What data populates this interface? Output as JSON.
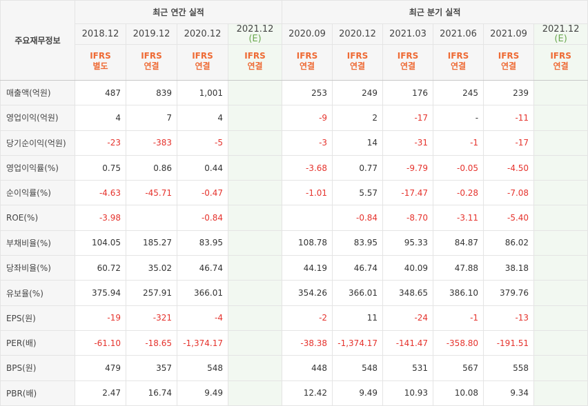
{
  "header": {
    "row_label": "주요재무정보",
    "annual_group": "최근 연간 실적",
    "quarterly_group": "최근 분기 실적",
    "annual_periods": [
      "2018.12",
      "2019.12",
      "2020.12"
    ],
    "annual_estimate": {
      "period": "2021.12",
      "mark": "(E)"
    },
    "quarterly_periods": [
      "2020.09",
      "2020.12",
      "2021.03",
      "2021.06",
      "2021.09"
    ],
    "quarterly_estimate": {
      "period": "2021.12",
      "mark": "(E)"
    },
    "annual_ifrs": [
      {
        "line1": "IFRS",
        "line2": "별도"
      },
      {
        "line1": "IFRS",
        "line2": "연결"
      },
      {
        "line1": "IFRS",
        "line2": "연결"
      },
      {
        "line1": "IFRS",
        "line2": "연결"
      }
    ],
    "quarterly_ifrs": [
      {
        "line1": "IFRS",
        "line2": "연결"
      },
      {
        "line1": "IFRS",
        "line2": "연결"
      },
      {
        "line1": "IFRS",
        "line2": "연결"
      },
      {
        "line1": "IFRS",
        "line2": "연결"
      },
      {
        "line1": "IFRS",
        "line2": "연결"
      },
      {
        "line1": "IFRS",
        "line2": "연결"
      }
    ]
  },
  "rows": [
    {
      "label": "매출액(억원)",
      "annual": [
        "487",
        "839",
        "1,001",
        ""
      ],
      "quarterly": [
        "253",
        "249",
        "176",
        "245",
        "239",
        ""
      ]
    },
    {
      "label": "영업이익(억원)",
      "annual": [
        "4",
        "7",
        "4",
        ""
      ],
      "quarterly": [
        "-9",
        "2",
        "-17",
        "-",
        "-11",
        ""
      ]
    },
    {
      "label": "당기순이익(억원)",
      "annual": [
        "-23",
        "-383",
        "-5",
        ""
      ],
      "quarterly": [
        "-3",
        "14",
        "-31",
        "-1",
        "-17",
        ""
      ]
    },
    {
      "label": "영업이익률(%)",
      "annual": [
        "0.75",
        "0.86",
        "0.44",
        ""
      ],
      "quarterly": [
        "-3.68",
        "0.77",
        "-9.79",
        "-0.05",
        "-4.50",
        ""
      ]
    },
    {
      "label": "순이익률(%)",
      "annual": [
        "-4.63",
        "-45.71",
        "-0.47",
        ""
      ],
      "quarterly": [
        "-1.01",
        "5.57",
        "-17.47",
        "-0.28",
        "-7.08",
        ""
      ]
    },
    {
      "label": "ROE(%)",
      "annual": [
        "-3.98",
        "",
        "-0.84",
        ""
      ],
      "quarterly": [
        "",
        "-0.84",
        "-8.70",
        "-3.11",
        "-5.40",
        ""
      ]
    },
    {
      "label": "부채비율(%)",
      "annual": [
        "104.05",
        "185.27",
        "83.95",
        ""
      ],
      "quarterly": [
        "108.78",
        "83.95",
        "95.33",
        "84.87",
        "86.02",
        ""
      ]
    },
    {
      "label": "당좌비율(%)",
      "annual": [
        "60.72",
        "35.02",
        "46.74",
        ""
      ],
      "quarterly": [
        "44.19",
        "46.74",
        "40.09",
        "47.88",
        "38.18",
        ""
      ]
    },
    {
      "label": "유보율(%)",
      "annual": [
        "375.94",
        "257.91",
        "366.01",
        ""
      ],
      "quarterly": [
        "354.26",
        "366.01",
        "348.65",
        "386.10",
        "379.76",
        ""
      ]
    },
    {
      "label": "EPS(원)",
      "annual": [
        "-19",
        "-321",
        "-4",
        ""
      ],
      "quarterly": [
        "-2",
        "11",
        "-24",
        "-1",
        "-13",
        ""
      ]
    },
    {
      "label": "PER(배)",
      "annual": [
        "-61.10",
        "-18.65",
        "-1,374.17",
        ""
      ],
      "quarterly": [
        "-38.38",
        "-1,374.17",
        "-141.47",
        "-358.80",
        "-191.51",
        ""
      ]
    },
    {
      "label": "BPS(원)",
      "annual": [
        "479",
        "357",
        "548",
        ""
      ],
      "quarterly": [
        "448",
        "548",
        "531",
        "567",
        "558",
        ""
      ]
    },
    {
      "label": "PBR(배)",
      "annual": [
        "2.47",
        "16.74",
        "9.49",
        ""
      ],
      "quarterly": [
        "12.42",
        "9.49",
        "10.93",
        "10.08",
        "9.34",
        ""
      ]
    }
  ],
  "colors": {
    "negative": "#e5322c",
    "ifrs_accent": "#ee6a34",
    "estimate_bg": "#f2f8f1",
    "estimate_mark": "#6aa84f"
  }
}
